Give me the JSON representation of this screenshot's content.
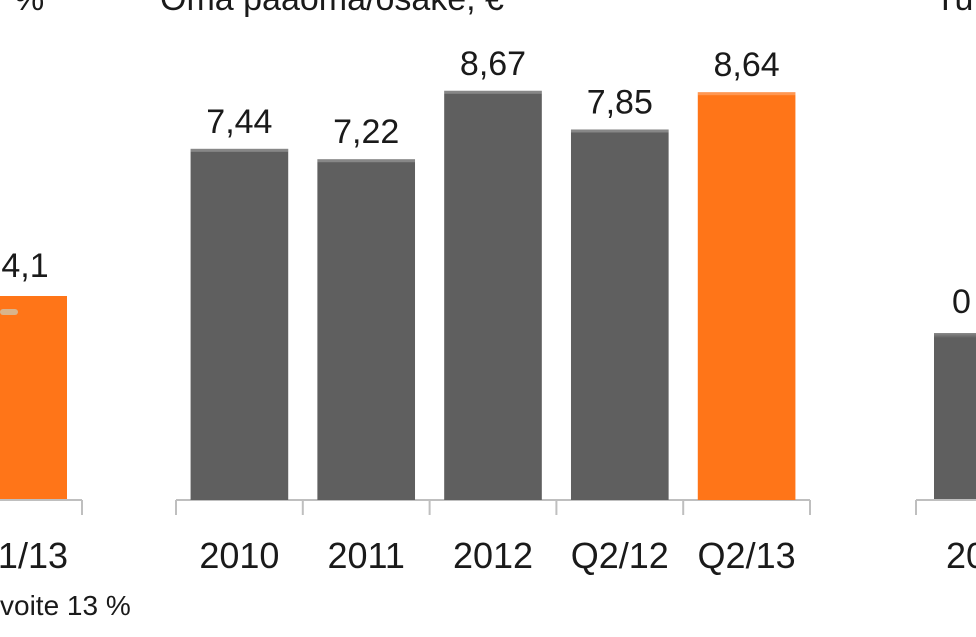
{
  "chart_data": {
    "type": "bar",
    "title": "Oma pääoma/osake, €",
    "categories": [
      "2010",
      "2011",
      "2012",
      "Q2/12",
      "Q2/13"
    ],
    "values": [
      7.44,
      7.22,
      8.67,
      7.85,
      8.64
    ],
    "value_labels": [
      "7,44",
      "7,22",
      "8,67",
      "7,85",
      "8,64"
    ],
    "colors": [
      "#5f5f5f",
      "#5f5f5f",
      "#5f5f5f",
      "#5f5f5f",
      "#ff7518"
    ],
    "ylim": [
      0,
      10
    ]
  },
  "left_chart": {
    "title": "%",
    "value_label": "4,1",
    "category": "1/13",
    "note": "voite 13 %"
  },
  "right_chart": {
    "title": "Tu",
    "value_label": "0",
    "category": "20"
  }
}
